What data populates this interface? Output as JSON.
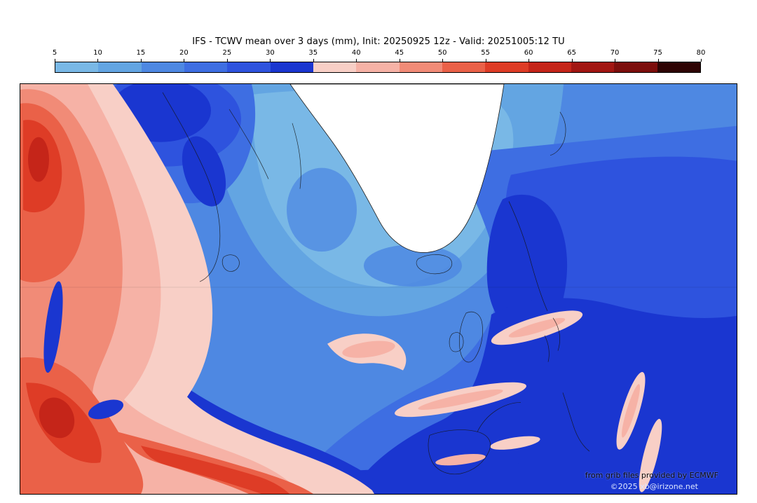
{
  "header": {
    "title": "IFS - TCWV mean over 3 days (mm), Init: 20250925 12z - Valid: 20251005:12 TU"
  },
  "colorbar": {
    "unit": "mm",
    "tick_labels": [
      "5",
      "10",
      "15",
      "20",
      "25",
      "30",
      "35",
      "40",
      "45",
      "50",
      "55",
      "60",
      "65",
      "70",
      "75",
      "80"
    ],
    "segment_colors": [
      "#79b8e6",
      "#63a5e2",
      "#4e88e2",
      "#3e6ee2",
      "#2e53de",
      "#1a36d0",
      "#f8cfc6",
      "#f6b2a6",
      "#f18b77",
      "#ea6148",
      "#de3c26",
      "#c52519",
      "#a21612",
      "#7c0e0c",
      "#2e0404"
    ]
  },
  "map": {
    "credit_line1": "from grib files provided by ECMWF",
    "credit_line2": "©2025 xb@irizone.net"
  },
  "chart_data": {
    "type": "heatmap",
    "title": "IFS - TCWV mean over 3 days (mm), Init: 20250925 12z - Valid: 20251005:12 TU",
    "model": "IFS",
    "variable": "Total Column Water Vapour, 3-day mean",
    "unit": "mm",
    "init": "20250925 12z",
    "valid": "20251005:12 TU",
    "levels": [
      5,
      10,
      15,
      20,
      25,
      30,
      35,
      40,
      45,
      50,
      55,
      60,
      65,
      70,
      75,
      80
    ],
    "palette": [
      "#79b8e6",
      "#63a5e2",
      "#4e88e2",
      "#3e6ee2",
      "#2e53de",
      "#1a36d0",
      "#f8cfc6",
      "#f6b2a6",
      "#f18b77",
      "#ea6148",
      "#de3c26",
      "#c52519",
      "#a21612",
      "#7c0e0c",
      "#2e0404"
    ],
    "region": "North Atlantic, Greenland and Europe",
    "legend_position": "top",
    "regions_read_from_map": [
      {
        "area": "western subtropical Atlantic (left edge)",
        "tcwv_mm": "45-60"
      },
      {
        "area": "dark red cores near west edge",
        "tcwv_mm": "55-65"
      },
      {
        "area": "pale pink fringe of western moist plume",
        "tcwv_mm": "35-45"
      },
      {
        "area": "Greenland ice sheet (white)",
        "tcwv_mm": "<5"
      },
      {
        "area": "seas around Greenland and Iceland",
        "tcwv_mm": "5-15"
      },
      {
        "area": "central North Atlantic",
        "tcwv_mm": "15-25"
      },
      {
        "area": "dark-blue moist arc from mid-Atlantic into SW Europe",
        "tcwv_mm": "30-35"
      },
      {
        "area": "Scandinavia and eastern Europe dark patches",
        "tcwv_mm": "30-35"
      },
      {
        "area": "central Europe / Mediterranean pink streaks",
        "tcwv_mm": "35-45"
      }
    ]
  }
}
